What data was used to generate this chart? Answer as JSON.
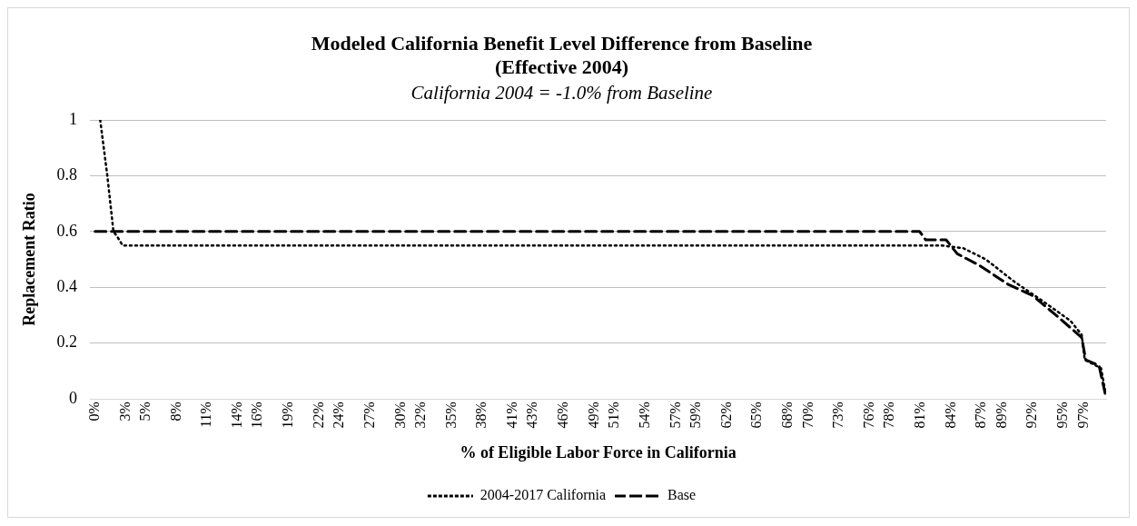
{
  "chart_data": {
    "type": "line",
    "title": [
      "Modeled California Benefit Level Difference from Baseline",
      "(Effective 2004)"
    ],
    "subtitle": "California 2004 = -1.0% from Baseline",
    "xlabel": "% of Eligible Labor Force in California",
    "ylabel": "Replacement Ratio",
    "xlim": [
      -0.5,
      99.2
    ],
    "xticks": [
      {
        "value": 0,
        "label": "0%"
      },
      {
        "value": 3,
        "label": "3%"
      },
      {
        "value": 5,
        "label": "5%"
      },
      {
        "value": 8,
        "label": "8%"
      },
      {
        "value": 11,
        "label": "11%"
      },
      {
        "value": 14,
        "label": "14%"
      },
      {
        "value": 16,
        "label": "16%"
      },
      {
        "value": 19,
        "label": "19%"
      },
      {
        "value": 22,
        "label": "22%"
      },
      {
        "value": 24,
        "label": "24%"
      },
      {
        "value": 27,
        "label": "27%"
      },
      {
        "value": 30,
        "label": "30%"
      },
      {
        "value": 32,
        "label": "32%"
      },
      {
        "value": 35,
        "label": "35%"
      },
      {
        "value": 38,
        "label": "38%"
      },
      {
        "value": 41,
        "label": "41%"
      },
      {
        "value": 43,
        "label": "43%"
      },
      {
        "value": 46,
        "label": "46%"
      },
      {
        "value": 49,
        "label": "49%"
      },
      {
        "value": 51,
        "label": "51%"
      },
      {
        "value": 54,
        "label": "54%"
      },
      {
        "value": 57,
        "label": "57%"
      },
      {
        "value": 59,
        "label": "59%"
      },
      {
        "value": 62,
        "label": "62%"
      },
      {
        "value": 65,
        "label": "65%"
      },
      {
        "value": 68,
        "label": "68%"
      },
      {
        "value": 70,
        "label": "70%"
      },
      {
        "value": 73,
        "label": "73%"
      },
      {
        "value": 76,
        "label": "76%"
      },
      {
        "value": 78,
        "label": "78%"
      },
      {
        "value": 81,
        "label": "81%"
      },
      {
        "value": 84,
        "label": "84%"
      },
      {
        "value": 87,
        "label": "87%"
      },
      {
        "value": 89,
        "label": "89%"
      },
      {
        "value": 92,
        "label": "92%"
      },
      {
        "value": 95,
        "label": "95%"
      },
      {
        "value": 97,
        "label": "97%"
      }
    ],
    "ylim": [
      0,
      1
    ],
    "yticks": [
      0,
      0.2,
      0.4,
      0.6,
      0.8,
      1
    ],
    "grid": "y",
    "legend": "bottom",
    "marker": "none",
    "series": [
      {
        "name": "2004-2017 California",
        "color": "#000000",
        "line_style": "dotted",
        "x": [
          0.5,
          1.2,
          1.8,
          2.2,
          2.7,
          83.1,
          85.2,
          87.4,
          90.2,
          93,
          95.7,
          96.8,
          97.1,
          98.7,
          99.1
        ],
        "values": [
          1,
          0.8,
          0.6,
          0.58,
          0.55,
          0.55,
          0.54,
          0.5,
          0.42,
          0.35,
          0.28,
          0.23,
          0.14,
          0.11,
          0.03
        ]
      },
      {
        "name": "Base",
        "color": "#000000",
        "line_style": "dashed",
        "x": [
          0,
          80.9,
          81.5,
          83.5,
          84.6,
          86.7,
          89.6,
          92,
          94.6,
          96.8,
          97.2,
          98.5,
          99.1
        ],
        "values": [
          0.6,
          0.6,
          0.57,
          0.57,
          0.52,
          0.48,
          0.41,
          0.37,
          0.29,
          0.22,
          0.14,
          0.12,
          0.02
        ]
      }
    ]
  }
}
